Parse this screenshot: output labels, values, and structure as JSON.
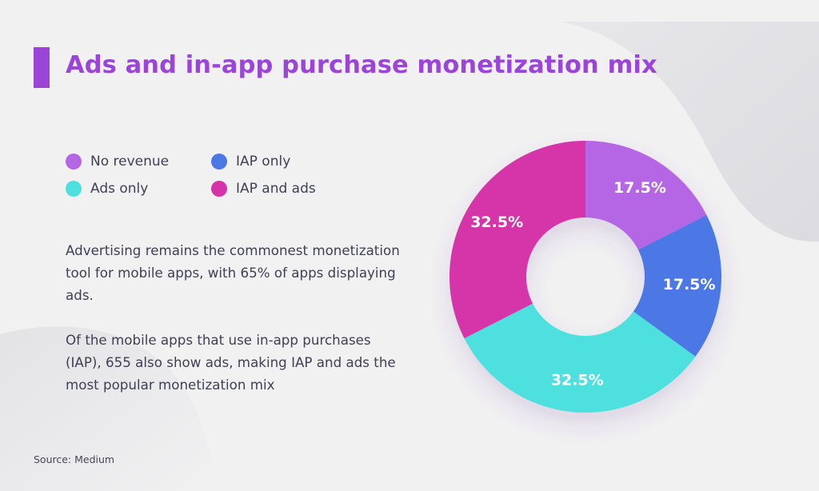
{
  "title": "Ads and in-app purchase monetization mix",
  "legend": [
    {
      "label": "No revenue",
      "color": "#b566e5"
    },
    {
      "label": "IAP only",
      "color": "#4b78e4"
    },
    {
      "label": "Ads only",
      "color": "#4ee0de"
    },
    {
      "label": "IAP and ads",
      "color": "#d534a8"
    }
  ],
  "paragraphs": [
    "Advertising remains the commonest monetization tool for mobile apps, with 65% of apps displaying ads.",
    "Of the mobile apps that use in-app purchases (IAP), 655 also show ads, making IAP and ads the most popular monetization mix"
  ],
  "source": "Source: Medium",
  "chart_data": {
    "type": "pie",
    "donut": true,
    "categories": [
      "No revenue",
      "IAP only",
      "Ads only",
      "IAP and ads"
    ],
    "values": [
      17.5,
      17.5,
      32.5,
      32.5
    ],
    "labels": [
      "17.5%",
      "17.5%",
      "32.5%",
      "32.5%"
    ],
    "colors": [
      "#b566e5",
      "#4b78e4",
      "#4ee0de",
      "#d534a8"
    ],
    "title": "Ads and in-app purchase monetization mix"
  }
}
